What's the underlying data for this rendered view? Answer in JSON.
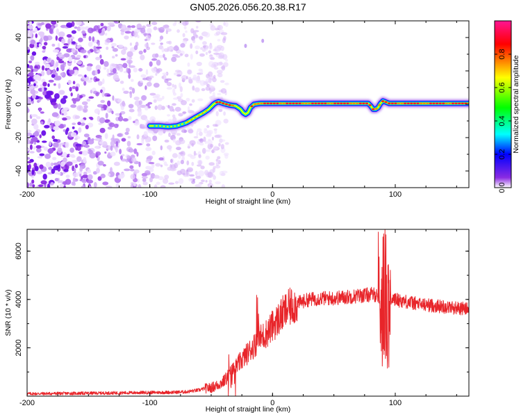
{
  "chart_data": [
    {
      "type": "heatmap",
      "title": "GN05.2026.056.20.38.R17",
      "xlabel": "Height of straight line (km)",
      "ylabel": "Frequency (Hz)",
      "xlim": [
        -200,
        160
      ],
      "ylim": [
        -50,
        50
      ],
      "xticks": [
        -200,
        -100,
        0,
        100
      ],
      "yticks": [
        -40,
        -20,
        0,
        20,
        40
      ],
      "colorbar": {
        "label": "Normalized spectral amplitude",
        "range": [
          0,
          1
        ],
        "ticks": [
          0.0,
          0.2,
          0.4,
          0.6,
          0.8
        ],
        "colormap": [
          "#ffffff",
          "#8a2be2",
          "#0000ff",
          "#00ffff",
          "#00ff00",
          "#ffff00",
          "#ff0000",
          "#ff0080"
        ]
      },
      "noise_region": {
        "x_from": -200,
        "x_to": -62,
        "color": "#8a2be2"
      },
      "ridge": {
        "x": [
          -100,
          -92,
          -85,
          -78,
          -70,
          -62,
          -56,
          -52,
          -48,
          -46,
          -44,
          -40,
          -35,
          -30,
          -26,
          -24,
          -22,
          -20,
          -18,
          -15,
          -10,
          0,
          20,
          50,
          78,
          80,
          82,
          84,
          86,
          88,
          90,
          95,
          110,
          130,
          160
        ],
        "freq_hz": [
          -13,
          -13,
          -13.5,
          -13,
          -11,
          -7.5,
          -5,
          -3,
          0,
          1,
          1.5,
          0.5,
          -0.5,
          -1,
          -3,
          -5,
          -6,
          -5,
          -2,
          0,
          0.5,
          0.5,
          0.5,
          0.5,
          0.5,
          -1,
          -3,
          -3,
          -2,
          0.5,
          2,
          0.5,
          0.5,
          0.5,
          0.5
        ]
      }
    },
    {
      "type": "line",
      "xlabel": "Height of straight line (km)",
      "ylabel": "SNR (10 * v/v)",
      "xlim": [
        -200,
        160
      ],
      "ylim": [
        0,
        6900
      ],
      "xticks": [
        -200,
        -100,
        0,
        100
      ],
      "yticks": [
        2000,
        4000,
        6000
      ],
      "series": [
        {
          "name": "SNR",
          "color": "#e8252a",
          "x": [
            -200,
            -150,
            -100,
            -80,
            -70,
            -60,
            -55,
            -50,
            -45,
            -40,
            -35,
            -30,
            -25,
            -20,
            -15,
            -10,
            -5,
            0,
            5,
            10,
            15,
            20,
            30,
            40,
            50,
            60,
            70,
            80,
            88,
            95,
            100,
            110,
            120,
            130,
            140,
            150,
            160
          ],
          "y": [
            100,
            120,
            150,
            160,
            180,
            250,
            320,
            350,
            450,
            600,
            900,
            1200,
            1500,
            1800,
            2100,
            2400,
            2600,
            2900,
            3200,
            3500,
            3700,
            3850,
            4000,
            4050,
            4050,
            4100,
            4150,
            4200,
            4200,
            4050,
            4000,
            3900,
            3800,
            3750,
            3700,
            3650,
            3600
          ]
        }
      ]
    }
  ]
}
